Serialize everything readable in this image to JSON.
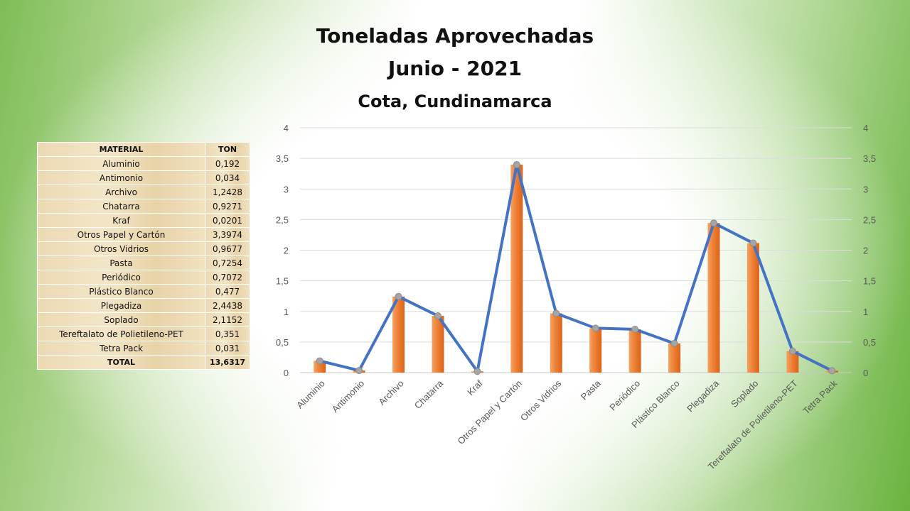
{
  "header": {
    "title": "Toneladas Aprovechadas",
    "subtitle": "Junio - 2021",
    "location": "Cota, Cundinamarca"
  },
  "table": {
    "col_material": "MATERIAL",
    "col_ton": "TON",
    "rows": [
      {
        "material": "Aluminio",
        "ton": "0,192"
      },
      {
        "material": "Antimonio",
        "ton": "0,034"
      },
      {
        "material": "Archivo",
        "ton": "1,2428"
      },
      {
        "material": "Chatarra",
        "ton": "0,9271"
      },
      {
        "material": "Kraf",
        "ton": "0,0201"
      },
      {
        "material": "Otros Papel y Cartón",
        "ton": "3,3974"
      },
      {
        "material": "Otros Vidrios",
        "ton": "0,9677"
      },
      {
        "material": "Pasta",
        "ton": "0,7254"
      },
      {
        "material": "Periódico",
        "ton": "0,7072"
      },
      {
        "material": "Plástico Blanco",
        "ton": "0,477"
      },
      {
        "material": "Plegadiza",
        "ton": "2,4438"
      },
      {
        "material": "Soplado",
        "ton": "2,1152"
      },
      {
        "material": "Tereftalato de Polietileno-PET",
        "ton": "0,351"
      },
      {
        "material": "Tetra Pack",
        "ton": "0,031"
      }
    ],
    "total_label": "TOTAL",
    "total_value": "13,6317"
  },
  "chart_data": {
    "type": "bar",
    "title": "",
    "categories": [
      "Aluminio",
      "Antimonio",
      "Archivo",
      "Chatarra",
      "Kraf",
      "Otros Papel y Cartón",
      "Otros Vidrios",
      "Pasta",
      "Periódico",
      "Plástico Blanco",
      "Plegadiza",
      "Soplado",
      "Tereftalato de Polietileno-PET",
      "Tetra Pack"
    ],
    "series": [
      {
        "type": "bar",
        "values": [
          0.192,
          0.034,
          1.2428,
          0.9271,
          0.0201,
          3.3974,
          0.9677,
          0.7254,
          0.7072,
          0.477,
          2.4438,
          2.1152,
          0.351,
          0.031
        ],
        "color": "#ed7d31"
      },
      {
        "type": "line",
        "values": [
          0.192,
          0.034,
          1.2428,
          0.9271,
          0.0201,
          3.3974,
          0.9677,
          0.7254,
          0.7072,
          0.477,
          2.4438,
          2.1152,
          0.351,
          0.031
        ],
        "color": "#4472c4",
        "marker_color": "#a5a5a5"
      }
    ],
    "ylim": [
      0,
      4
    ],
    "y_ticks": [
      "0",
      "0,5",
      "1",
      "1,5",
      "2",
      "2,5",
      "3",
      "3,5",
      "4"
    ],
    "secondary_axis": true,
    "grid": true,
    "legend": "none"
  }
}
